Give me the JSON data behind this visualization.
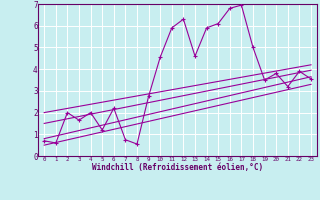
{
  "xlabel": "Windchill (Refroidissement éolien,°C)",
  "background_color": "#c8eef0",
  "line_color": "#990099",
  "grid_color": "#ffffff",
  "xlim": [
    -0.5,
    23.5
  ],
  "ylim": [
    0,
    7
  ],
  "xticks": [
    0,
    1,
    2,
    3,
    4,
    5,
    6,
    7,
    8,
    9,
    10,
    11,
    12,
    13,
    14,
    15,
    16,
    17,
    18,
    19,
    20,
    21,
    22,
    23
  ],
  "yticks": [
    0,
    1,
    2,
    3,
    4,
    5,
    6,
    7
  ],
  "main_x": [
    0,
    1,
    2,
    3,
    4,
    5,
    6,
    7,
    8,
    9,
    10,
    11,
    12,
    13,
    14,
    15,
    16,
    17,
    18,
    19,
    20,
    21,
    22,
    23
  ],
  "main_y": [
    0.7,
    0.6,
    2.0,
    1.65,
    2.0,
    1.2,
    2.2,
    0.75,
    0.55,
    2.75,
    4.55,
    5.9,
    6.3,
    4.6,
    5.9,
    6.1,
    6.8,
    6.95,
    5.0,
    3.5,
    3.8,
    3.2,
    3.9,
    3.55
  ],
  "line1_x": [
    0,
    23
  ],
  "line1_y": [
    0.5,
    3.3
  ],
  "line2_x": [
    0,
    23
  ],
  "line2_y": [
    0.8,
    3.65
  ],
  "line3_x": [
    0,
    23
  ],
  "line3_y": [
    1.5,
    3.95
  ],
  "line4_x": [
    0,
    23
  ],
  "line4_y": [
    2.0,
    4.2
  ]
}
